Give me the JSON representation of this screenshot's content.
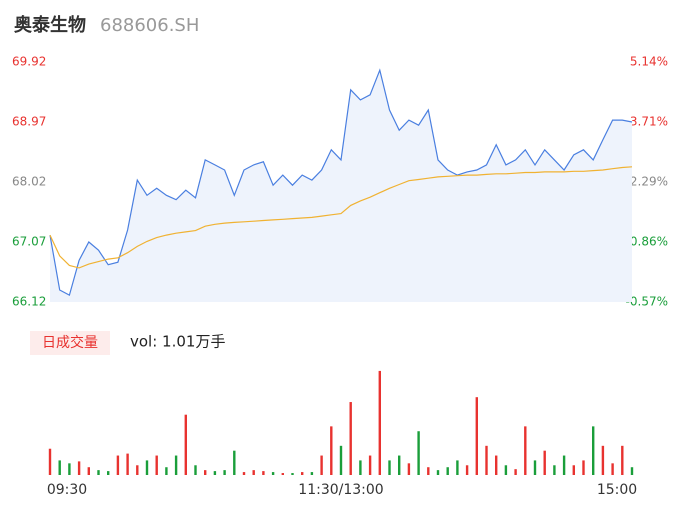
{
  "header": {
    "name": "奥泰生物",
    "code": "688606.SH"
  },
  "chart_data": [
    {
      "type": "line",
      "ylim": [
        66.12,
        69.92
      ],
      "yticks": [
        {
          "value": 69.92,
          "label": "69.92"
        },
        {
          "value": 68.97,
          "label": "68.97"
        },
        {
          "value": 68.02,
          "label": "68.02"
        },
        {
          "value": 67.07,
          "label": "67.07"
        },
        {
          "value": 66.12,
          "label": "66.12"
        }
      ],
      "ytick_colors": [
        "#e8322f",
        "#e8322f",
        "#888888",
        "#1a9e3a",
        "#1a9e3a"
      ],
      "y2lim": [
        -0.57,
        5.14
      ],
      "y2ticks": [
        {
          "value": 5.14,
          "label": "5.14%"
        },
        {
          "value": 3.71,
          "label": "3.71%"
        },
        {
          "value": 2.29,
          "label": "2.29%"
        },
        {
          "value": 0.86,
          "label": "0.86%"
        },
        {
          "value": -0.57,
          "label": "-0.57%"
        }
      ],
      "y2tick_colors": [
        "#e8322f",
        "#e8322f",
        "#888888",
        "#1a9e3a",
        "#1a9e3a"
      ],
      "xlim": [
        0,
        60
      ],
      "series": [
        {
          "name": "price",
          "color": "#4a7fe0",
          "values": [
            67.18,
            66.31,
            66.23,
            66.78,
            67.07,
            66.94,
            66.71,
            66.75,
            67.26,
            68.05,
            67.81,
            67.92,
            67.81,
            67.74,
            67.89,
            67.77,
            68.37,
            68.29,
            68.21,
            67.81,
            68.21,
            68.29,
            68.34,
            67.97,
            68.13,
            67.97,
            68.13,
            68.05,
            68.21,
            68.53,
            68.37,
            69.48,
            69.32,
            69.4,
            69.79,
            69.16,
            68.84,
            69.0,
            68.92,
            69.16,
            68.37,
            68.21,
            68.13,
            68.18,
            68.21,
            68.29,
            68.61,
            68.29,
            68.37,
            68.53,
            68.29,
            68.53,
            68.37,
            68.21,
            68.45,
            68.53,
            68.37,
            68.69,
            69.0,
            69.0,
            68.97
          ]
        },
        {
          "name": "average",
          "color": "#f0b232",
          "values": [
            67.18,
            66.85,
            66.7,
            66.66,
            66.72,
            66.76,
            66.8,
            66.82,
            66.9,
            67.0,
            67.08,
            67.14,
            67.18,
            67.21,
            67.23,
            67.25,
            67.32,
            67.35,
            67.37,
            67.38,
            67.39,
            67.4,
            67.41,
            67.42,
            67.43,
            67.44,
            67.45,
            67.46,
            67.48,
            67.5,
            67.52,
            67.65,
            67.72,
            67.78,
            67.85,
            67.92,
            67.98,
            68.04,
            68.06,
            68.08,
            68.1,
            68.11,
            68.12,
            68.13,
            68.13,
            68.14,
            68.15,
            68.15,
            68.16,
            68.17,
            68.17,
            68.18,
            68.18,
            68.18,
            68.19,
            68.19,
            68.2,
            68.21,
            68.23,
            68.25,
            68.26
          ]
        }
      ],
      "area_color": "#eef3fc"
    },
    {
      "type": "volume",
      "label": "日成交量",
      "summary": "vol: 1.01万手",
      "ylim": [
        0,
        110
      ],
      "xlim": [
        0,
        60
      ],
      "xticks": [
        {
          "value": 0,
          "label": "09:30"
        },
        {
          "value": 30,
          "label": "11:30/13:00"
        },
        {
          "value": 60,
          "label": "15:00"
        }
      ],
      "up_color": "#e8322f",
      "down_color": "#1a9e3a",
      "values": [
        27,
        15,
        12,
        14,
        8,
        5,
        4,
        20,
        22,
        10,
        15,
        20,
        8,
        20,
        62,
        10,
        5,
        4,
        5,
        25,
        3,
        5,
        4,
        3,
        2,
        2,
        3,
        3,
        20,
        50,
        30,
        75,
        15,
        20,
        107,
        15,
        20,
        12,
        45,
        8,
        5,
        8,
        15,
        10,
        80,
        30,
        20,
        10,
        6,
        50,
        15,
        25,
        10,
        20,
        10,
        15,
        50,
        30,
        12,
        30,
        8
      ]
    }
  ]
}
